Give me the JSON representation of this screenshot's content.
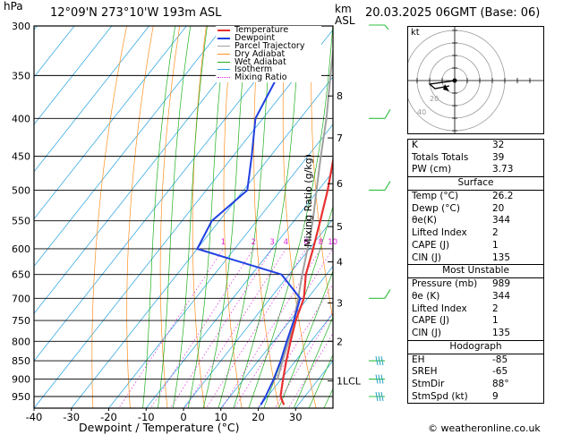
{
  "header": {
    "hpa_label": "hPa",
    "location": "12°09'N  273°10'W  193m  ASL",
    "km_label": "km",
    "asl_label": "ASL",
    "datetime": "20.03.2025  06GMT  (Base: 06)"
  },
  "footer": {
    "copyright": "© weatheronline.co.uk"
  },
  "colors": {
    "temperature": "#e83030",
    "dewpoint": "#2040e0",
    "parcel": "#a0a0a0",
    "dry_adiabat": "#ff9020",
    "wet_adiabat": "#20b020",
    "isotherm": "#20a0e0",
    "mixing_ratio": "#e020e0",
    "wind_barb": "#30c040"
  },
  "chart_data": {
    "type": "line",
    "title": "",
    "xlabel": "Dewpoint / Temperature (°C)",
    "ylabel": "hPa",
    "y2label": "Mixing Ratio (g/kg)",
    "xlim": [
      -40,
      40
    ],
    "ylim": [
      975,
      300
    ],
    "y_scale": "log",
    "grid": true,
    "legend": "top-left",
    "x_ticks": [
      -40,
      -30,
      -20,
      -10,
      0,
      10,
      20,
      30
    ],
    "pressure_levels": [
      300,
      350,
      400,
      450,
      500,
      550,
      600,
      650,
      700,
      750,
      800,
      850,
      900,
      950
    ],
    "km_ticks": [
      {
        "label": "8",
        "p": 373
      },
      {
        "label": "7",
        "p": 425
      },
      {
        "label": "6",
        "p": 490
      },
      {
        "label": "5",
        "p": 560
      },
      {
        "label": "4",
        "p": 625
      },
      {
        "label": "3",
        "p": 710
      },
      {
        "label": "2",
        "p": 800
      },
      {
        "label": "1LCL",
        "p": 905
      }
    ],
    "mixing_ratio_labels": [
      {
        "label": "1",
        "value": 1
      },
      {
        "label": "2",
        "value": 2
      },
      {
        "label": "3",
        "value": 3
      },
      {
        "label": "4",
        "value": 4
      },
      {
        "label": "6",
        "value": 6
      },
      {
        "label": "8",
        "value": 8
      },
      {
        "label": "10",
        "value": 10
      },
      {
        "label": "15",
        "value": 15
      },
      {
        "label": "20",
        "value": 20
      },
      {
        "label": "25",
        "value": 25
      }
    ],
    "legend_entries": [
      "Temperature",
      "Dewpoint",
      "Parcel Trajectory",
      "Dry Adiabat",
      "Wet Adiabat",
      "Isotherm",
      "Mixing Ratio"
    ],
    "series": [
      {
        "name": "Temperature",
        "points": [
          [
            975,
            26.2
          ],
          [
            950,
            23.5
          ],
          [
            900,
            20.5
          ],
          [
            850,
            17.5
          ],
          [
            800,
            14.5
          ],
          [
            750,
            11.5
          ],
          [
            700,
            9.0
          ],
          [
            650,
            4.5
          ],
          [
            600,
            1.0
          ],
          [
            550,
            -3.0
          ],
          [
            500,
            -7.5
          ],
          [
            450,
            -13.0
          ],
          [
            400,
            -19.5
          ],
          [
            350,
            -27.0
          ],
          [
            300,
            -37.0
          ]
        ]
      },
      {
        "name": "Dewpoint",
        "points": [
          [
            975,
            20.0
          ],
          [
            950,
            19.5
          ],
          [
            900,
            18.0
          ],
          [
            850,
            16.0
          ],
          [
            800,
            13.5
          ],
          [
            750,
            11.0
          ],
          [
            700,
            8.0
          ],
          [
            650,
            -2.0
          ],
          [
            600,
            -30.0
          ],
          [
            550,
            -32.0
          ],
          [
            500,
            -29.0
          ],
          [
            450,
            -35.0
          ],
          [
            400,
            -42.0
          ],
          [
            350,
            -45.0
          ],
          [
            300,
            -46.5
          ]
        ]
      },
      {
        "name": "Parcel Trajectory",
        "points": [
          [
            900,
            19.0
          ],
          [
            850,
            16.5
          ],
          [
            800,
            14.0
          ],
          [
            750,
            11.0
          ],
          [
            700,
            7.5
          ],
          [
            650,
            3.5
          ],
          [
            600,
            -0.5
          ],
          [
            550,
            -5.0
          ],
          [
            500,
            -10.5
          ],
          [
            450,
            -16.5
          ],
          [
            400,
            -23.0
          ],
          [
            350,
            -31.0
          ],
          [
            300,
            -40.0
          ]
        ]
      }
    ]
  },
  "hodograph": {
    "label": "kt",
    "ring_labels": [
      "20",
      "40"
    ]
  },
  "indices": {
    "rows": [
      {
        "k": "K",
        "v": "32"
      },
      {
        "k": "Totals Totals",
        "v": "39"
      },
      {
        "k": "PW (cm)",
        "v": "3.73"
      }
    ]
  },
  "surface": {
    "title": "Surface",
    "rows": [
      {
        "k": "Temp (°C)",
        "v": "26.2"
      },
      {
        "k": "Dewp (°C)",
        "v": "20"
      },
      {
        "k": "θe(K)",
        "v": "344"
      },
      {
        "k": "Lifted Index",
        "v": "2"
      },
      {
        "k": "CAPE (J)",
        "v": "1"
      },
      {
        "k": "CIN (J)",
        "v": "135"
      }
    ]
  },
  "most_unstable": {
    "title": "Most Unstable",
    "rows": [
      {
        "k": "Pressure (mb)",
        "v": "989"
      },
      {
        "k": "θe (K)",
        "v": "344"
      },
      {
        "k": "Lifted Index",
        "v": "2"
      },
      {
        "k": "CAPE (J)",
        "v": "1"
      },
      {
        "k": "CIN (J)",
        "v": "135"
      }
    ]
  },
  "hodograph_table": {
    "title": "Hodograph",
    "rows": [
      {
        "k": "EH",
        "v": "-85"
      },
      {
        "k": "SREH",
        "v": "-65"
      },
      {
        "k": "StmDir",
        "v": "88°"
      },
      {
        "k": "StmSpd (kt)",
        "v": "9"
      }
    ]
  }
}
